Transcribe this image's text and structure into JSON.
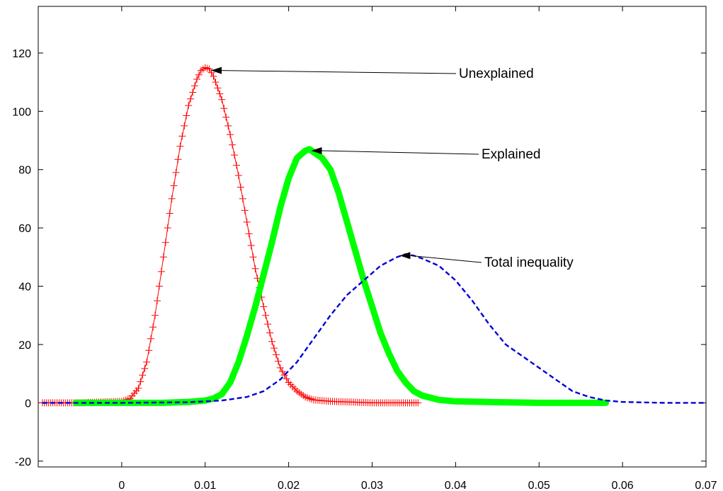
{
  "chart_data": {
    "type": "line",
    "title": "",
    "xlabel": "",
    "ylabel": "",
    "xlim": [
      -0.01,
      0.07
    ],
    "ylim": [
      -22,
      136
    ],
    "xticks": [
      0,
      0.01,
      0.02,
      0.03,
      0.04,
      0.05,
      0.06,
      0.07
    ],
    "xtick_labels": [
      "0",
      "0.01",
      "0.02",
      "0.03",
      "0.04",
      "0.05",
      "0.06",
      "0.07"
    ],
    "yticks": [
      -20,
      0,
      20,
      40,
      60,
      80,
      100,
      120
    ],
    "ytick_labels": [
      "-20",
      "0",
      "20",
      "40",
      "60",
      "80",
      "100",
      "120"
    ],
    "grid": false,
    "series": [
      {
        "key": "unexplained",
        "color": "#ff0000",
        "marker": "plus",
        "x": [
          -0.0095,
          -0.005,
          0,
          0.001,
          0.002,
          0.003,
          0.004,
          0.005,
          0.006,
          0.007,
          0.008,
          0.009,
          0.0095,
          0.01,
          0.0105,
          0.011,
          0.012,
          0.013,
          0.014,
          0.015,
          0.016,
          0.017,
          0.018,
          0.019,
          0.02,
          0.021,
          0.022,
          0.023,
          0.025,
          0.03,
          0.0355
        ],
        "y": [
          0,
          0,
          0.5,
          1.5,
          5,
          14,
          30,
          50,
          70,
          88,
          102,
          111,
          114,
          115,
          114.5,
          112,
          104,
          92,
          78,
          62,
          46,
          33,
          21,
          12,
          7,
          4,
          2,
          1,
          0.5,
          0,
          0
        ]
      },
      {
        "key": "explained",
        "color": "#00ff00",
        "marker": "thick",
        "x": [
          -0.0055,
          0,
          0.005,
          0.008,
          0.01,
          0.011,
          0.012,
          0.013,
          0.014,
          0.015,
          0.016,
          0.017,
          0.018,
          0.019,
          0.02,
          0.021,
          0.022,
          0.0225,
          0.023,
          0.024,
          0.025,
          0.026,
          0.027,
          0.028,
          0.029,
          0.03,
          0.031,
          0.032,
          0.033,
          0.034,
          0.035,
          0.036,
          0.038,
          0.04,
          0.045,
          0.05,
          0.058
        ],
        "y": [
          0,
          0,
          0,
          0.3,
          0.8,
          1.5,
          3,
          7,
          14,
          23,
          33,
          44,
          55,
          67,
          77,
          84,
          86.5,
          87,
          86,
          84,
          80,
          72,
          62,
          52,
          42,
          33,
          24,
          17,
          11,
          7,
          4,
          2.5,
          1,
          0.5,
          0.2,
          0,
          0
        ]
      },
      {
        "key": "total",
        "color": "#0000d8",
        "marker": "dashed",
        "x": [
          -0.0095,
          0,
          0.008,
          0.012,
          0.015,
          0.017,
          0.019,
          0.021,
          0.023,
          0.025,
          0.027,
          0.029,
          0.031,
          0.033,
          0.034,
          0.035,
          0.036,
          0.038,
          0.04,
          0.042,
          0.044,
          0.046,
          0.048,
          0.05,
          0.052,
          0.054,
          0.056,
          0.058,
          0.06,
          0.065,
          0.07
        ],
        "y": [
          0,
          0,
          0.2,
          0.8,
          2,
          4,
          8,
          14,
          22,
          30,
          37,
          42,
          47,
          50,
          51,
          50.5,
          49.5,
          47,
          42,
          35,
          27,
          20,
          16,
          12,
          8,
          4,
          2,
          0.8,
          0.3,
          0,
          0
        ]
      }
    ],
    "annotations": [
      {
        "text": "Unexplained",
        "arrow_to": [
          0.0107,
          114
        ]
      },
      {
        "text": "Explained",
        "arrow_to": [
          0.0227,
          86.5
        ]
      },
      {
        "text": "Total inequality",
        "arrow_to": [
          0.0333,
          50.5
        ]
      }
    ]
  }
}
